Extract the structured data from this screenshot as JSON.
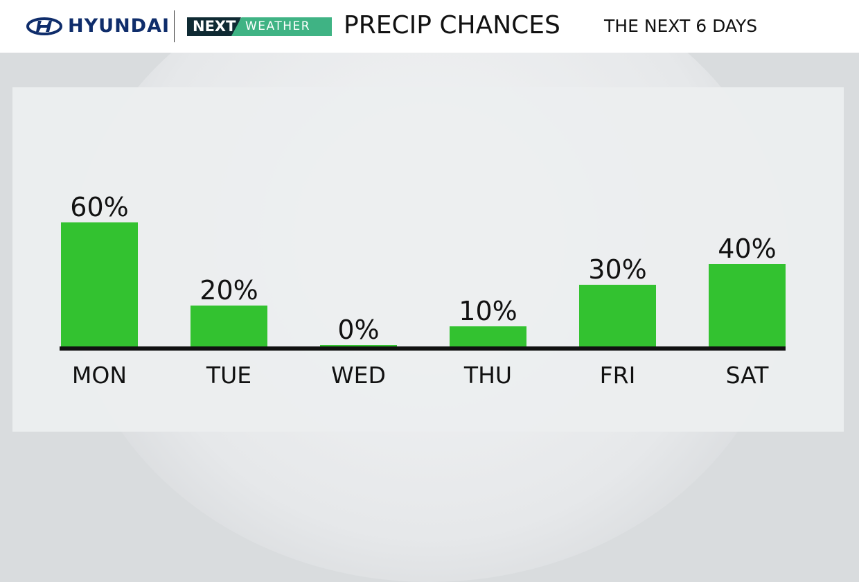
{
  "header": {
    "brand": "HYUNDAI",
    "logo_next": "NEXT",
    "logo_weather": "WEATHER",
    "title": "PRECIP CHANCES",
    "subtitle": "THE NEXT 6 DAYS"
  },
  "colors": {
    "bar": "#33c230",
    "axis": "#111111",
    "header_text": "#111111"
  },
  "chart_data": {
    "type": "bar",
    "title": "PRECIP CHANCES",
    "categories": [
      "MON",
      "TUE",
      "WED",
      "THU",
      "FRI",
      "SAT"
    ],
    "values": [
      60,
      20,
      0,
      10,
      30,
      40
    ],
    "data_labels": [
      "60%",
      "20%",
      "0%",
      "10%",
      "30%",
      "40%"
    ],
    "unit": "%",
    "ylim": [
      0,
      100
    ],
    "grid": false,
    "legend": "none"
  }
}
